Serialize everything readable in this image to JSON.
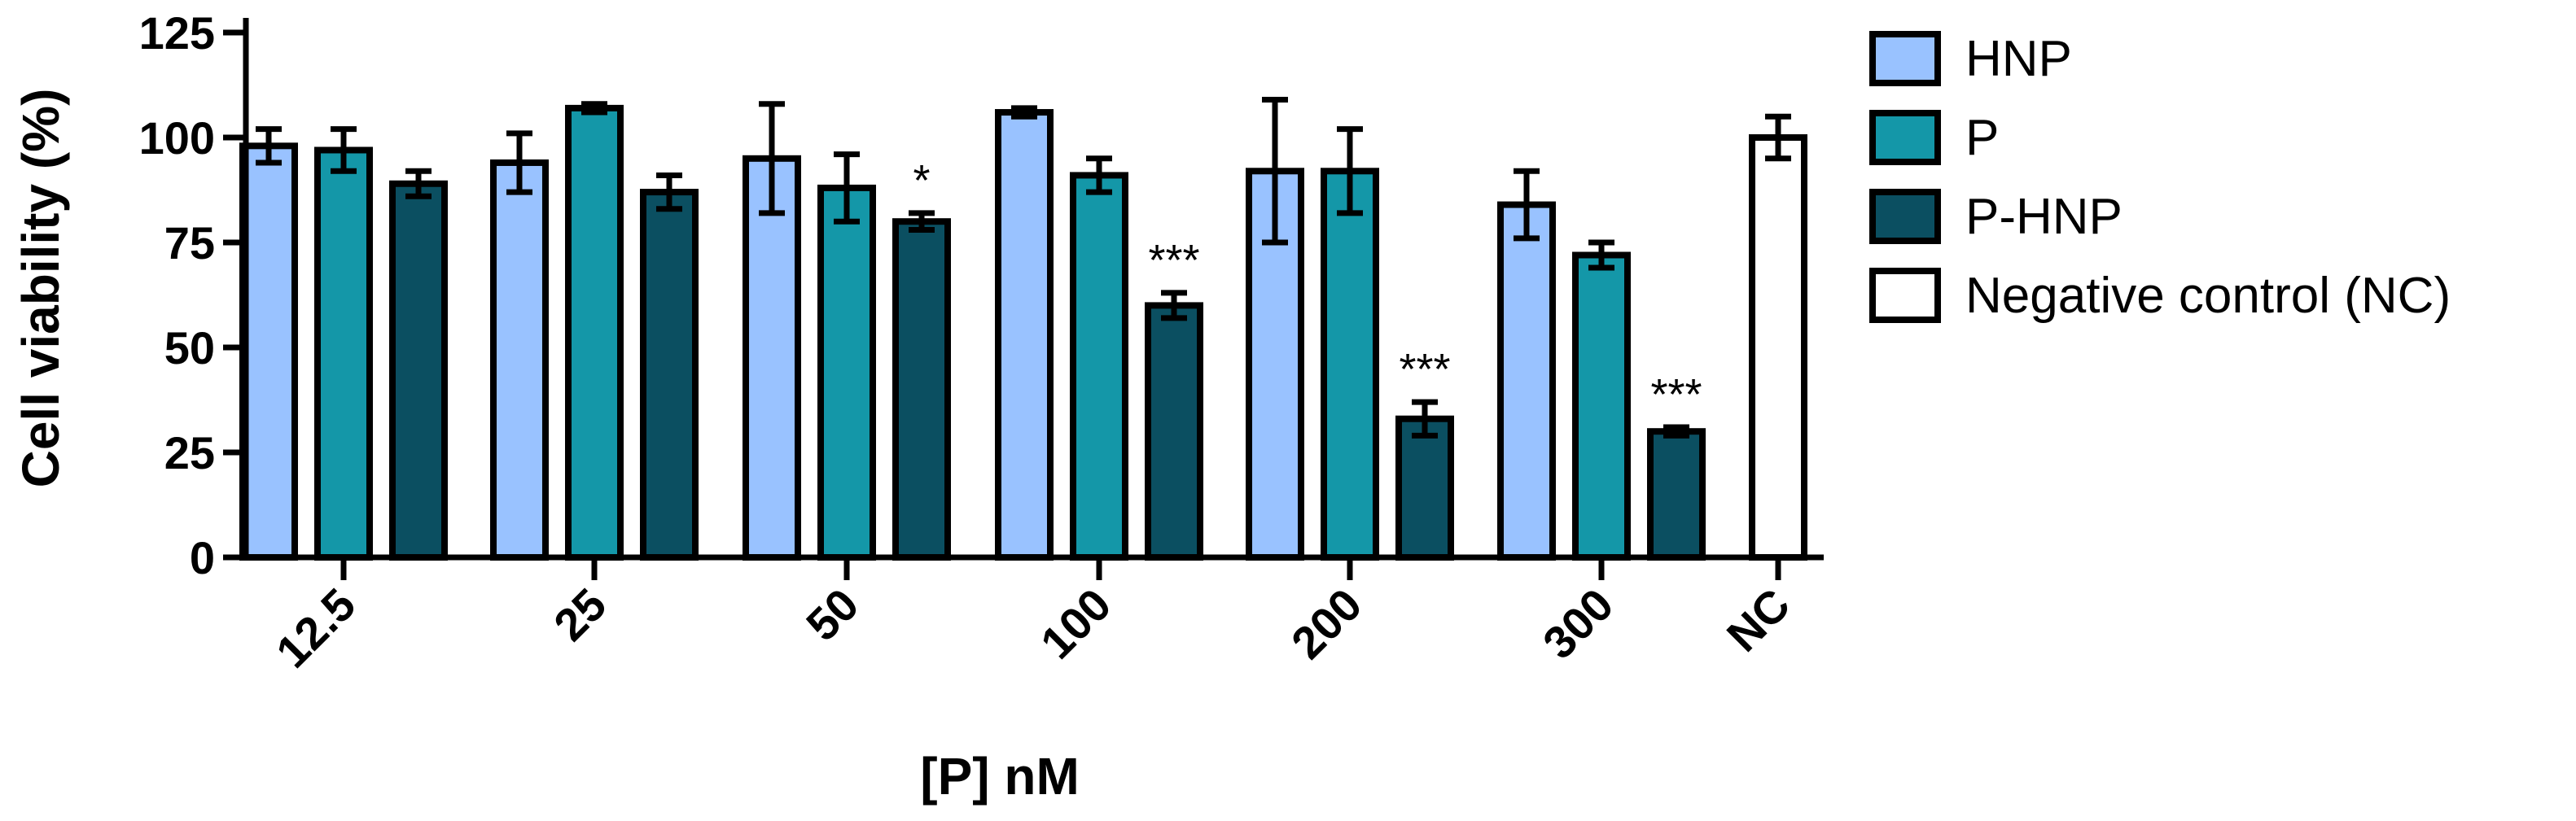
{
  "chart_data": {
    "type": "bar",
    "xlabel": "[P] nM",
    "ylabel": "Cell viability (%)",
    "ylim": [
      0,
      125
    ],
    "yticks": [
      "0",
      "25",
      "50",
      "75",
      "100",
      "125"
    ],
    "categories": [
      "12.5",
      "25",
      "50",
      "100",
      "200",
      "300",
      "NC"
    ],
    "series": [
      {
        "name": "HNP",
        "color": "#99c2ff",
        "values": [
          98,
          94,
          95,
          106,
          92,
          84,
          null
        ],
        "errors": [
          4,
          7,
          13,
          1,
          17,
          8,
          null
        ]
      },
      {
        "name": "P",
        "color": "#1497a8",
        "values": [
          97,
          107,
          88,
          91,
          92,
          72,
          null
        ],
        "errors": [
          5,
          1,
          8,
          4,
          10,
          3,
          null
        ]
      },
      {
        "name": "P-HNP",
        "color": "#0b4f61",
        "values": [
          89,
          87,
          80,
          60,
          33,
          30,
          null
        ],
        "errors": [
          3,
          4,
          2,
          3,
          4,
          1,
          null
        ]
      },
      {
        "name": "Negative control (NC)",
        "color": "#ffffff",
        "values": [
          null,
          null,
          null,
          null,
          null,
          null,
          100
        ],
        "errors": [
          null,
          null,
          null,
          null,
          null,
          null,
          5
        ]
      }
    ],
    "annotations": [
      {
        "category": "50",
        "series": "P-HNP",
        "text": "*"
      },
      {
        "category": "100",
        "series": "P-HNP",
        "text": "***"
      },
      {
        "category": "200",
        "series": "P-HNP",
        "text": "***"
      },
      {
        "category": "300",
        "series": "P-HNP",
        "text": "***"
      }
    ],
    "legend_position": "right",
    "grid": false
  }
}
